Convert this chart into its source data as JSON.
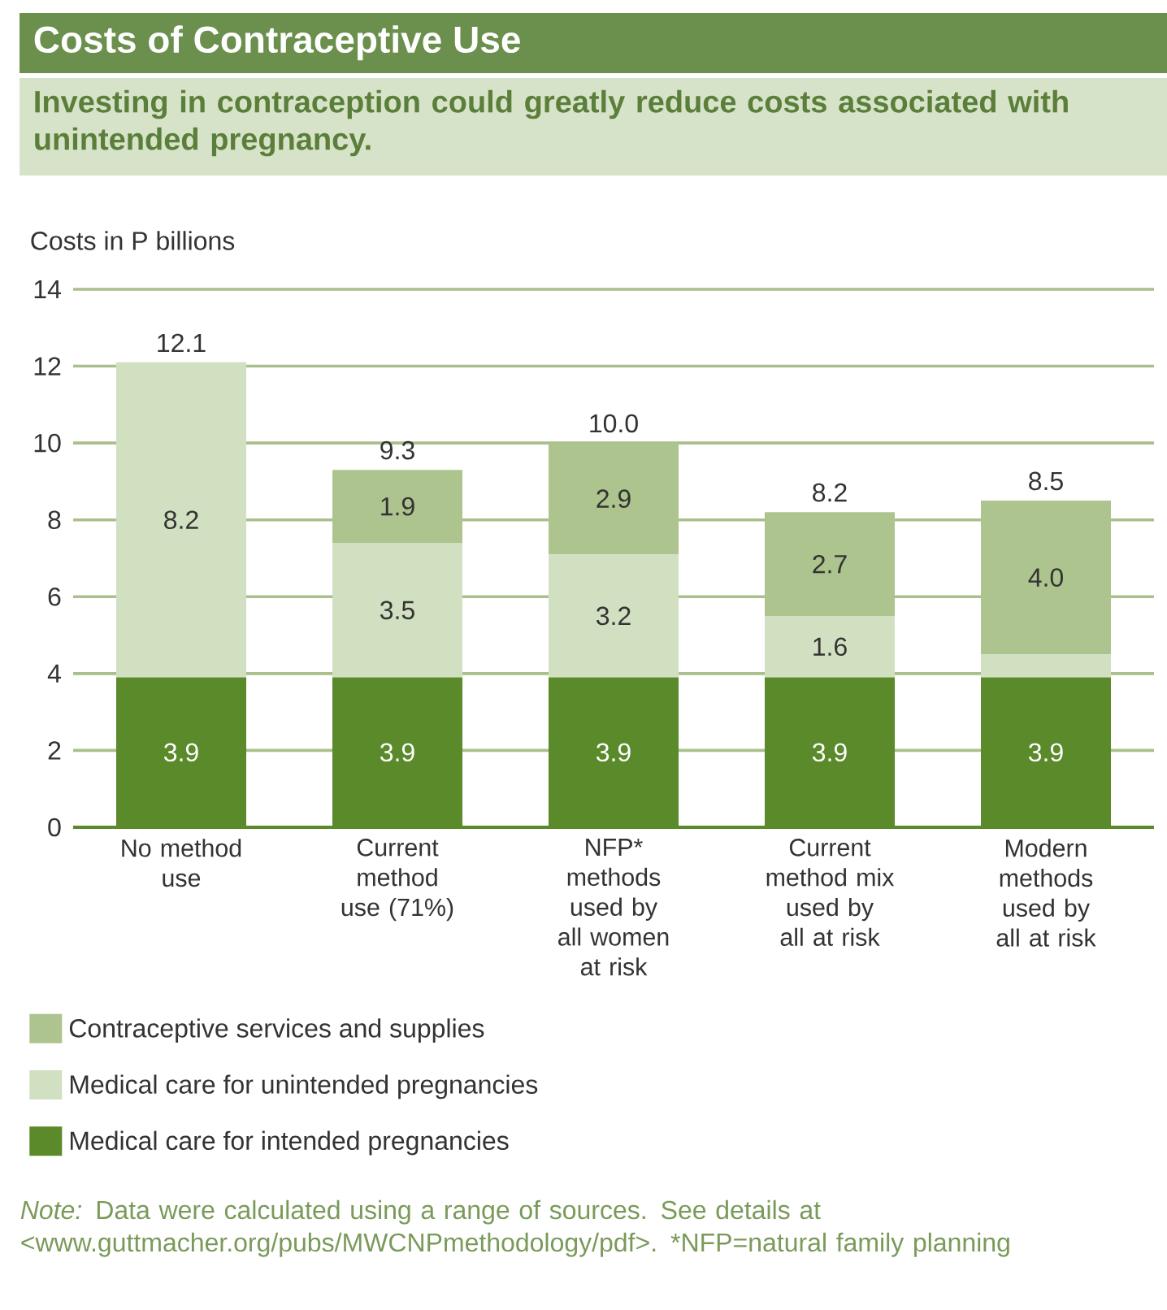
{
  "chart_data": {
    "type": "bar",
    "stacked": true,
    "title": "Costs of Contraceptive Use",
    "subtitle": "Investing in contraception could greatly reduce costs associated with unintended pregnancy.",
    "ylabel": "Costs in P billions",
    "categories": [
      "No method use",
      "Current method use (71%)",
      "NFP* methods used by all women at risk",
      "Current method mix used by all at risk",
      "Modern methods used by all at risk"
    ],
    "series": [
      {
        "name": "Medical care for intended pregnancies",
        "color": "#5a8a2a",
        "values": [
          3.9,
          3.9,
          3.9,
          3.9,
          3.9
        ],
        "value_labels": [
          "3.9",
          "3.9",
          "3.9",
          "3.9",
          "3.9"
        ]
      },
      {
        "name": "Medical care for unintended pregnancies",
        "color": "#d2e0c2",
        "values": [
          8.2,
          3.5,
          3.2,
          1.6,
          0.6
        ],
        "value_labels": [
          "8.2",
          "3.5",
          "3.2",
          "1.6",
          null
        ]
      },
      {
        "name": "Contraceptive services and supplies",
        "color": "#adc48e",
        "values": [
          null,
          1.9,
          2.9,
          2.7,
          4.0
        ],
        "value_labels": [
          null,
          "1.9",
          "2.9",
          "2.7",
          "4.0"
        ]
      }
    ],
    "totals": [
      "12.1",
      "9.3",
      "10.0",
      "8.2",
      "8.5"
    ],
    "ylim": [
      0,
      14
    ],
    "yticks": [
      0,
      2,
      4,
      6,
      8,
      10,
      12,
      14
    ],
    "grid": "y",
    "legend": "bottom left",
    "annotations": [
      "*Note:* Data were calculated using a range of sources. See details at <www.guttmacher.org/pubs/MWCNPmethodology/pdf>. *NFP=natural family planning"
    ]
  }
}
